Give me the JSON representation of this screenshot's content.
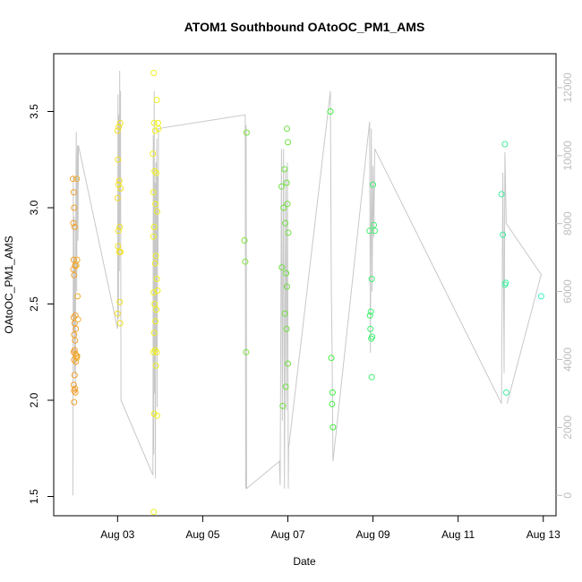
{
  "chart_data": {
    "type": "scatter",
    "title": "ATOM1 Southbound OAtoOC_PM1_AMS",
    "xlabel": "Date",
    "ylabel": "OAtoOC_PM1_AMS",
    "x_ticks": [
      "Aug 03",
      "Aug 05",
      "Aug 07",
      "Aug 09",
      "Aug 11",
      "Aug 13"
    ],
    "x_tick_values": [
      3,
      5,
      7,
      9,
      11,
      13
    ],
    "xlim": [
      1.5,
      13.3
    ],
    "y_ticks": [
      "1.5",
      "2.0",
      "2.5",
      "3.0",
      "3.5"
    ],
    "y_tick_values": [
      1.5,
      2.0,
      2.5,
      3.0,
      3.5
    ],
    "ylim": [
      1.4,
      3.8
    ],
    "right_axis": {
      "ticks": [
        "0",
        "2000",
        "4000",
        "6000",
        "8000",
        "10000",
        "12000"
      ],
      "tick_values": [
        0,
        2000,
        4000,
        6000,
        8000,
        10000,
        12000
      ],
      "lim": [
        -600,
        13000
      ],
      "color": "#bdbdbd"
    },
    "line_color": "#c8c8c8",
    "grid": false,
    "points": [
      {
        "x": 1.95,
        "y": 3.15,
        "color": "#f0a030"
      },
      {
        "x": 1.97,
        "y": 3.08,
        "color": "#f0a030"
      },
      {
        "x": 1.98,
        "y": 3.0,
        "color": "#f0a030"
      },
      {
        "x": 1.96,
        "y": 2.92,
        "color": "#f0a030"
      },
      {
        "x": 1.99,
        "y": 2.9,
        "color": "#f0a030"
      },
      {
        "x": 1.97,
        "y": 2.73,
        "color": "#f0a030"
      },
      {
        "x": 2.0,
        "y": 2.7,
        "color": "#f0a030"
      },
      {
        "x": 1.96,
        "y": 2.68,
        "color": "#f0a030"
      },
      {
        "x": 1.98,
        "y": 2.65,
        "color": "#f0a030"
      },
      {
        "x": 2.01,
        "y": 2.44,
        "color": "#f0a030"
      },
      {
        "x": 1.97,
        "y": 2.43,
        "color": "#f0a030"
      },
      {
        "x": 1.99,
        "y": 2.4,
        "color": "#f0a030"
      },
      {
        "x": 2.02,
        "y": 2.37,
        "color": "#f0a030"
      },
      {
        "x": 1.98,
        "y": 2.34,
        "color": "#f0a030"
      },
      {
        "x": 2.0,
        "y": 2.31,
        "color": "#f0a030"
      },
      {
        "x": 1.99,
        "y": 2.26,
        "color": "#f0a030"
      },
      {
        "x": 1.97,
        "y": 2.25,
        "color": "#f0a030"
      },
      {
        "x": 2.01,
        "y": 2.24,
        "color": "#f0a030"
      },
      {
        "x": 2.03,
        "y": 2.23,
        "color": "#f0a030"
      },
      {
        "x": 1.98,
        "y": 2.21,
        "color": "#f0a030"
      },
      {
        "x": 2.02,
        "y": 2.2,
        "color": "#f0a030"
      },
      {
        "x": 1.99,
        "y": 2.13,
        "color": "#f0a030"
      },
      {
        "x": 1.97,
        "y": 2.08,
        "color": "#f0a030"
      },
      {
        "x": 2.0,
        "y": 2.06,
        "color": "#f0a030"
      },
      {
        "x": 1.98,
        "y": 2.05,
        "color": "#f0a030"
      },
      {
        "x": 2.01,
        "y": 2.04,
        "color": "#f0a030"
      },
      {
        "x": 1.98,
        "y": 1.99,
        "color": "#f0a030"
      },
      {
        "x": 2.04,
        "y": 3.15,
        "color": "#f0b030"
      },
      {
        "x": 2.05,
        "y": 2.73,
        "color": "#f0b030"
      },
      {
        "x": 2.03,
        "y": 2.7,
        "color": "#f0b030"
      },
      {
        "x": 2.06,
        "y": 2.54,
        "color": "#f0b030"
      },
      {
        "x": 2.07,
        "y": 2.42,
        "color": "#f0b030"
      },
      {
        "x": 2.04,
        "y": 2.22,
        "color": "#f0b030"
      },
      {
        "x": 2.05,
        "y": 2.23,
        "color": "#f0b030"
      },
      {
        "x": 3.0,
        "y": 3.4,
        "color": "#f0e020"
      },
      {
        "x": 3.03,
        "y": 3.42,
        "color": "#f0e020"
      },
      {
        "x": 3.06,
        "y": 3.44,
        "color": "#f0e020"
      },
      {
        "x": 3.01,
        "y": 3.25,
        "color": "#f0e020"
      },
      {
        "x": 3.04,
        "y": 3.14,
        "color": "#f0e020"
      },
      {
        "x": 3.02,
        "y": 3.12,
        "color": "#f0e020"
      },
      {
        "x": 3.07,
        "y": 3.1,
        "color": "#f0e020"
      },
      {
        "x": 3.0,
        "y": 3.05,
        "color": "#f0e020"
      },
      {
        "x": 3.05,
        "y": 2.9,
        "color": "#f0e020"
      },
      {
        "x": 3.02,
        "y": 2.88,
        "color": "#f0e020"
      },
      {
        "x": 3.01,
        "y": 2.8,
        "color": "#f0e020"
      },
      {
        "x": 3.04,
        "y": 2.77,
        "color": "#f0e020"
      },
      {
        "x": 3.07,
        "y": 2.77,
        "color": "#f0e020"
      },
      {
        "x": 3.05,
        "y": 2.51,
        "color": "#f0e020"
      },
      {
        "x": 3.0,
        "y": 2.45,
        "color": "#f0e020"
      },
      {
        "x": 3.06,
        "y": 2.4,
        "color": "#f0e020"
      },
      {
        "x": 3.85,
        "y": 3.7,
        "color": "#f0f020"
      },
      {
        "x": 3.92,
        "y": 3.56,
        "color": "#f0f020"
      },
      {
        "x": 3.86,
        "y": 3.44,
        "color": "#f0f020"
      },
      {
        "x": 3.95,
        "y": 3.44,
        "color": "#f0f020"
      },
      {
        "x": 3.88,
        "y": 3.4,
        "color": "#f0f020"
      },
      {
        "x": 3.96,
        "y": 3.41,
        "color": "#f0f020"
      },
      {
        "x": 3.83,
        "y": 3.28,
        "color": "#f0f020"
      },
      {
        "x": 3.87,
        "y": 3.19,
        "color": "#f0f020"
      },
      {
        "x": 3.91,
        "y": 3.18,
        "color": "#f0f020"
      },
      {
        "x": 3.84,
        "y": 3.08,
        "color": "#f0f020"
      },
      {
        "x": 3.89,
        "y": 3.02,
        "color": "#f0f020"
      },
      {
        "x": 3.93,
        "y": 2.98,
        "color": "#f0f020"
      },
      {
        "x": 3.86,
        "y": 2.9,
        "color": "#f0f020"
      },
      {
        "x": 3.84,
        "y": 2.85,
        "color": "#f0f020"
      },
      {
        "x": 3.9,
        "y": 2.75,
        "color": "#f0f020"
      },
      {
        "x": 3.88,
        "y": 2.71,
        "color": "#f0f020"
      },
      {
        "x": 3.92,
        "y": 2.63,
        "color": "#f0f020"
      },
      {
        "x": 3.85,
        "y": 2.56,
        "color": "#f0f020"
      },
      {
        "x": 3.94,
        "y": 2.57,
        "color": "#f0f020"
      },
      {
        "x": 3.87,
        "y": 2.5,
        "color": "#f0f020"
      },
      {
        "x": 3.91,
        "y": 2.47,
        "color": "#f0f020"
      },
      {
        "x": 3.89,
        "y": 2.41,
        "color": "#f0f020"
      },
      {
        "x": 3.86,
        "y": 2.35,
        "color": "#f0f020"
      },
      {
        "x": 3.84,
        "y": 2.25,
        "color": "#f0f020"
      },
      {
        "x": 3.88,
        "y": 2.26,
        "color": "#f0f020"
      },
      {
        "x": 3.92,
        "y": 2.25,
        "color": "#f0f020"
      },
      {
        "x": 3.9,
        "y": 2.18,
        "color": "#f0f020"
      },
      {
        "x": 3.86,
        "y": 1.93,
        "color": "#f0f020"
      },
      {
        "x": 3.93,
        "y": 1.92,
        "color": "#f0f020"
      },
      {
        "x": 3.85,
        "y": 1.42,
        "color": "#f0f020"
      },
      {
        "x": 6.03,
        "y": 3.39,
        "color": "#80e040"
      },
      {
        "x": 5.98,
        "y": 2.83,
        "color": "#80e040"
      },
      {
        "x": 6.0,
        "y": 2.72,
        "color": "#80e040"
      },
      {
        "x": 6.02,
        "y": 2.25,
        "color": "#80e040"
      },
      {
        "x": 6.98,
        "y": 3.41,
        "color": "#70e040"
      },
      {
        "x": 7.0,
        "y": 3.34,
        "color": "#70e040"
      },
      {
        "x": 6.92,
        "y": 3.2,
        "color": "#70e040"
      },
      {
        "x": 6.97,
        "y": 3.13,
        "color": "#70e040"
      },
      {
        "x": 6.85,
        "y": 3.11,
        "color": "#70e040"
      },
      {
        "x": 6.9,
        "y": 3.0,
        "color": "#70e040"
      },
      {
        "x": 6.99,
        "y": 3.02,
        "color": "#70e040"
      },
      {
        "x": 6.94,
        "y": 2.92,
        "color": "#70e040"
      },
      {
        "x": 7.01,
        "y": 2.87,
        "color": "#70e040"
      },
      {
        "x": 6.86,
        "y": 2.69,
        "color": "#70e040"
      },
      {
        "x": 6.96,
        "y": 2.66,
        "color": "#70e040"
      },
      {
        "x": 6.98,
        "y": 2.59,
        "color": "#70e040"
      },
      {
        "x": 6.93,
        "y": 2.45,
        "color": "#70e040"
      },
      {
        "x": 6.97,
        "y": 2.37,
        "color": "#70e040"
      },
      {
        "x": 7.0,
        "y": 2.19,
        "color": "#70e040"
      },
      {
        "x": 6.95,
        "y": 2.07,
        "color": "#70e040"
      },
      {
        "x": 6.88,
        "y": 1.97,
        "color": "#70e040"
      },
      {
        "x": 8.0,
        "y": 3.5,
        "color": "#40f040"
      },
      {
        "x": 8.02,
        "y": 2.22,
        "color": "#40f040"
      },
      {
        "x": 8.05,
        "y": 2.04,
        "color": "#40f040"
      },
      {
        "x": 8.04,
        "y": 1.98,
        "color": "#40f040"
      },
      {
        "x": 8.06,
        "y": 1.86,
        "color": "#40f040"
      },
      {
        "x": 9.0,
        "y": 3.12,
        "color": "#40f070"
      },
      {
        "x": 9.02,
        "y": 2.91,
        "color": "#40f070"
      },
      {
        "x": 8.92,
        "y": 2.88,
        "color": "#40f070"
      },
      {
        "x": 9.04,
        "y": 2.88,
        "color": "#40f070"
      },
      {
        "x": 8.97,
        "y": 2.63,
        "color": "#40f070"
      },
      {
        "x": 8.95,
        "y": 2.46,
        "color": "#40f070"
      },
      {
        "x": 8.93,
        "y": 2.44,
        "color": "#40f070"
      },
      {
        "x": 8.94,
        "y": 2.37,
        "color": "#40f070"
      },
      {
        "x": 8.98,
        "y": 2.33,
        "color": "#40f070"
      },
      {
        "x": 8.96,
        "y": 2.32,
        "color": "#40f070"
      },
      {
        "x": 8.97,
        "y": 2.12,
        "color": "#40f070"
      },
      {
        "x": 12.1,
        "y": 3.33,
        "color": "#40f0a0"
      },
      {
        "x": 12.02,
        "y": 3.07,
        "color": "#40f0a0"
      },
      {
        "x": 12.05,
        "y": 2.86,
        "color": "#40f0a0"
      },
      {
        "x": 12.12,
        "y": 2.61,
        "color": "#40f0a0"
      },
      {
        "x": 12.1,
        "y": 2.6,
        "color": "#40f0a0"
      },
      {
        "x": 12.13,
        "y": 2.04,
        "color": "#40f0a0"
      },
      {
        "x": 12.95,
        "y": 2.54,
        "color": "#40f0c0"
      }
    ],
    "right_axis_series": [
      {
        "x": 1.95,
        "y": 0
      },
      {
        "x": 1.96,
        "y": 9400
      },
      {
        "x": 1.97,
        "y": 4800
      },
      {
        "x": 1.98,
        "y": 8200
      },
      {
        "x": 1.99,
        "y": 3600
      },
      {
        "x": 2.0,
        "y": 7000
      },
      {
        "x": 2.01,
        "y": 3000
      },
      {
        "x": 2.02,
        "y": 8500
      },
      {
        "x": 2.03,
        "y": 10700
      },
      {
        "x": 2.04,
        "y": 6000
      },
      {
        "x": 2.05,
        "y": 9600
      },
      {
        "x": 2.06,
        "y": 10300
      },
      {
        "x": 2.07,
        "y": 7500
      },
      {
        "x": 2.08,
        "y": 10300
      },
      {
        "x": 3.0,
        "y": 4900
      },
      {
        "x": 3.01,
        "y": 11800
      },
      {
        "x": 3.02,
        "y": 5200
      },
      {
        "x": 3.03,
        "y": 11200
      },
      {
        "x": 3.04,
        "y": 6600
      },
      {
        "x": 3.05,
        "y": 12500
      },
      {
        "x": 3.06,
        "y": 7800
      },
      {
        "x": 3.07,
        "y": 11900
      },
      {
        "x": 3.08,
        "y": 2800
      },
      {
        "x": 3.83,
        "y": 600
      },
      {
        "x": 3.84,
        "y": 10600
      },
      {
        "x": 3.85,
        "y": 1200
      },
      {
        "x": 3.86,
        "y": 11900
      },
      {
        "x": 3.87,
        "y": 3000
      },
      {
        "x": 3.88,
        "y": 9200
      },
      {
        "x": 3.89,
        "y": 500
      },
      {
        "x": 3.9,
        "y": 9800
      },
      {
        "x": 3.91,
        "y": 4200
      },
      {
        "x": 3.92,
        "y": 10500
      },
      {
        "x": 3.93,
        "y": 2600
      },
      {
        "x": 3.94,
        "y": 9400
      },
      {
        "x": 3.95,
        "y": 6800
      },
      {
        "x": 3.96,
        "y": 10800
      },
      {
        "x": 6.0,
        "y": 11200
      },
      {
        "x": 6.01,
        "y": 200
      },
      {
        "x": 6.02,
        "y": 10900
      },
      {
        "x": 6.03,
        "y": 200
      },
      {
        "x": 6.8,
        "y": 1000
      },
      {
        "x": 6.82,
        "y": 300
      },
      {
        "x": 6.85,
        "y": 10200
      },
      {
        "x": 6.87,
        "y": 2200
      },
      {
        "x": 6.9,
        "y": 10200
      },
      {
        "x": 6.92,
        "y": 200
      },
      {
        "x": 6.95,
        "y": 9600
      },
      {
        "x": 6.97,
        "y": 2500
      },
      {
        "x": 6.99,
        "y": 9800
      },
      {
        "x": 7.01,
        "y": 200
      },
      {
        "x": 7.02,
        "y": 1400
      },
      {
        "x": 8.0,
        "y": 11900
      },
      {
        "x": 8.02,
        "y": 6200
      },
      {
        "x": 8.04,
        "y": 4200
      },
      {
        "x": 8.06,
        "y": 1000
      },
      {
        "x": 8.92,
        "y": 11000
      },
      {
        "x": 8.94,
        "y": 4200
      },
      {
        "x": 8.96,
        "y": 10800
      },
      {
        "x": 8.98,
        "y": 6000
      },
      {
        "x": 9.0,
        "y": 9700
      },
      {
        "x": 9.02,
        "y": 7600
      },
      {
        "x": 9.04,
        "y": 10200
      },
      {
        "x": 12.02,
        "y": 2700
      },
      {
        "x": 12.05,
        "y": 9500
      },
      {
        "x": 12.08,
        "y": 3600
      },
      {
        "x": 12.1,
        "y": 10100
      },
      {
        "x": 12.13,
        "y": 8000
      },
      {
        "x": 12.95,
        "y": 6500
      },
      {
        "x": 12.15,
        "y": 2700
      }
    ]
  }
}
